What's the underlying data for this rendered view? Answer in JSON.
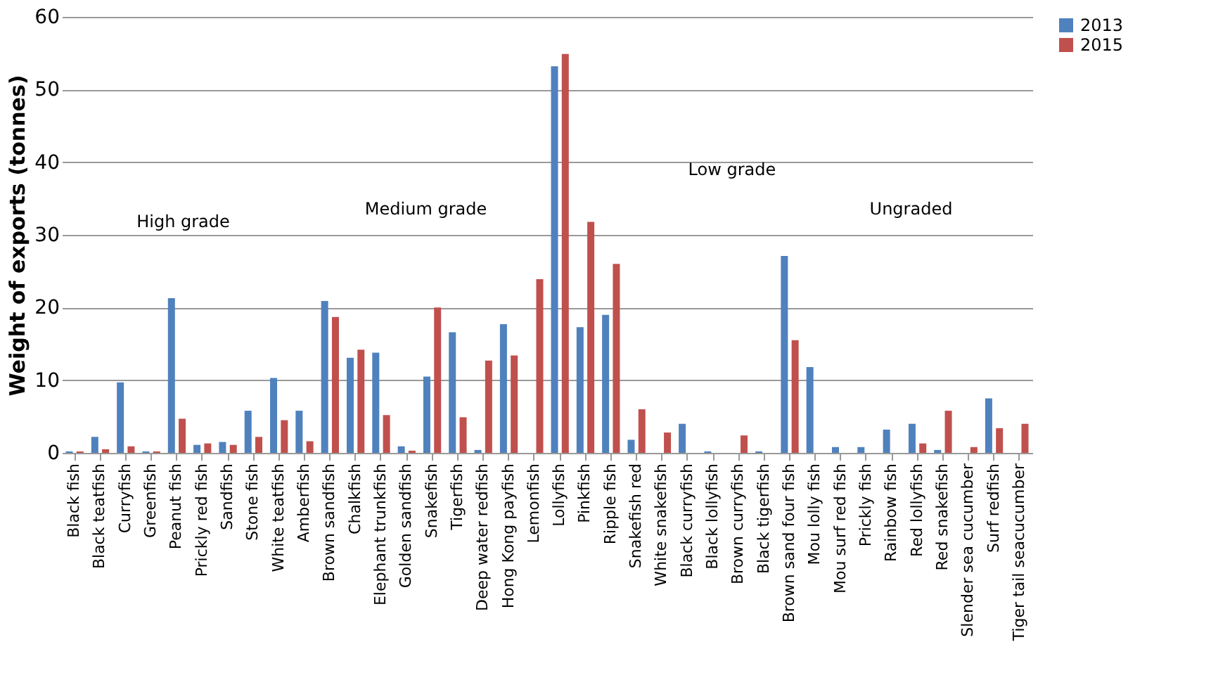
{
  "chart_data": {
    "type": "bar",
    "ylabel": "Weight of exports (tonnes)",
    "categories": [
      "Black fish",
      "Black teatfish",
      "Curryfish",
      "Greenfish",
      "Peanut fish",
      "Prickly red fish",
      "Sandfish",
      "Stone fish",
      "White teatfish",
      "Amberfish",
      "Brown sandfish",
      "Chalkfish",
      "Elephant trunkfish",
      "Golden sandfish",
      "Snakefish",
      "Tigerfish",
      "Deep water  redfish",
      "Hong Kong payfish",
      "Lemonfish",
      "Lollyfish",
      "Pinkfish",
      "Ripple fish",
      "Snakefish red",
      "White snakefish",
      "Black curryfish",
      "Black lollyfish",
      "Brown curryfish",
      "Black tigerfish",
      "Brown sand four fish",
      "Mou lolly fish",
      "Mou surf red fish",
      "Prickly fish",
      "Rainbow fish",
      "Red lollyfish",
      "Red snakefish",
      "Slender sea cucumber",
      "Surf redfish",
      "Tiger tail seacucumber"
    ],
    "series": [
      {
        "name": "2013",
        "color": "#4f81bd",
        "values": [
          0.2,
          2.2,
          9.7,
          0.2,
          21.3,
          1.1,
          1.5,
          5.8,
          10.3,
          5.8,
          20.9,
          13.1,
          13.8,
          0.9,
          10.5,
          16.6,
          0.4,
          17.7,
          null,
          53.2,
          17.3,
          19.0,
          1.8,
          null,
          4.0,
          0.2,
          null,
          0.2,
          27.1,
          11.8,
          0.8,
          0.8,
          3.2,
          4.0,
          0.4,
          null,
          7.5,
          null
        ]
      },
      {
        "name": "2015",
        "color": "#c0504d",
        "values": [
          0.2,
          0.5,
          0.9,
          0.2,
          4.7,
          1.3,
          1.1,
          2.2,
          4.5,
          1.6,
          18.7,
          14.2,
          5.2,
          0.3,
          20.0,
          4.9,
          12.7,
          13.4,
          23.9,
          54.9,
          31.8,
          26.0,
          6.0,
          2.8,
          null,
          null,
          2.4,
          null,
          15.5,
          null,
          null,
          null,
          null,
          1.3,
          5.8,
          0.8,
          3.4,
          4.0
        ]
      }
    ],
    "ylim": [
      0,
      60
    ],
    "yticks": [
      0,
      10,
      20,
      30,
      40,
      50,
      60
    ],
    "grid": "y",
    "legend": "right",
    "annotations": [
      "High grade",
      "Medium grade",
      "Low grade",
      "Ungraded"
    ]
  }
}
